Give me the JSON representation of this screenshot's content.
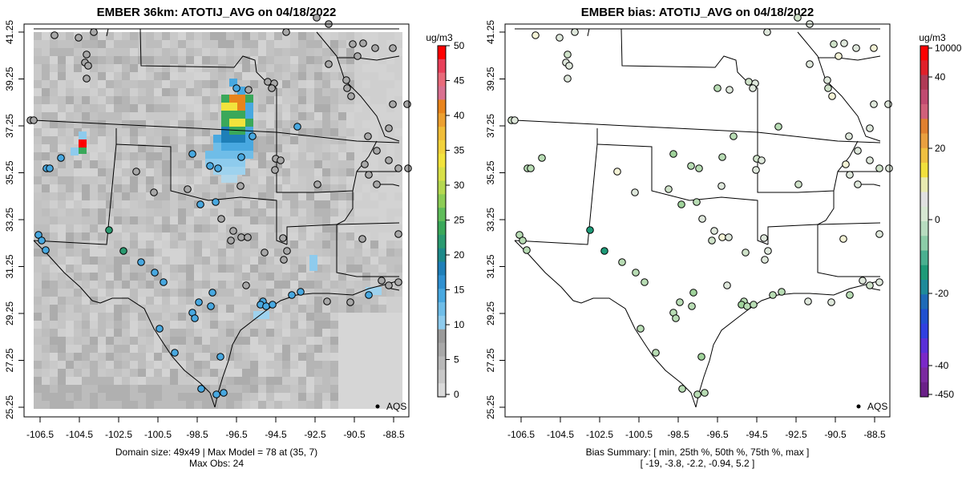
{
  "left_panel": {
    "title": "EMBER 36km: ATOTIJ_AVG on 04/18/2022",
    "colorbar_unit": "ug/m3",
    "colorbar_labels": [
      "50",
      "45",
      "40",
      "35",
      "30",
      "25",
      "20",
      "15",
      "10",
      "5",
      "0"
    ],
    "footer_line1": "Domain size: 49x49 | Max Model = 78 at (35, 7)",
    "footer_line2": "Max Obs: 24",
    "legend_label": "AQS"
  },
  "right_panel": {
    "title": "EMBER bias: ATOTIJ_AVG on 04/18/2022",
    "colorbar_unit": "ug/m3",
    "colorbar_labels": [
      "10000",
      "40",
      "20",
      "0",
      "-20",
      "-40",
      "-450"
    ],
    "footer_line1": "Bias Summary: [ min, 25th %, 50th %, 75th %, max ]",
    "footer_line2": "[ -19,   -3.8,   -2.2,   -0.94,   5.2 ]",
    "legend_label": "AQS"
  },
  "axes": {
    "x_ticks": [
      "-106.5",
      "-104.5",
      "-102.5",
      "-100.5",
      "-98.5",
      "-96.5",
      "-94.5",
      "-92.5",
      "-90.5",
      "-88.5"
    ],
    "y_ticks": [
      "41.25",
      "39.25",
      "37.25",
      "35.25",
      "33.25",
      "31.25",
      "29.25",
      "27.25",
      "25.25"
    ]
  },
  "colors": {
    "model_background": "#c9c9c9",
    "hotspot_red": "#ff0000",
    "hotspot_orange": "#e8841c",
    "hotspot_yellow": "#f2e33c",
    "hotspot_green": "#3aa85a",
    "hotspot_blue": "#48a8e0",
    "bias_near_zero": "#d6e8d2",
    "bias_negative": "#1e9a78"
  }
}
